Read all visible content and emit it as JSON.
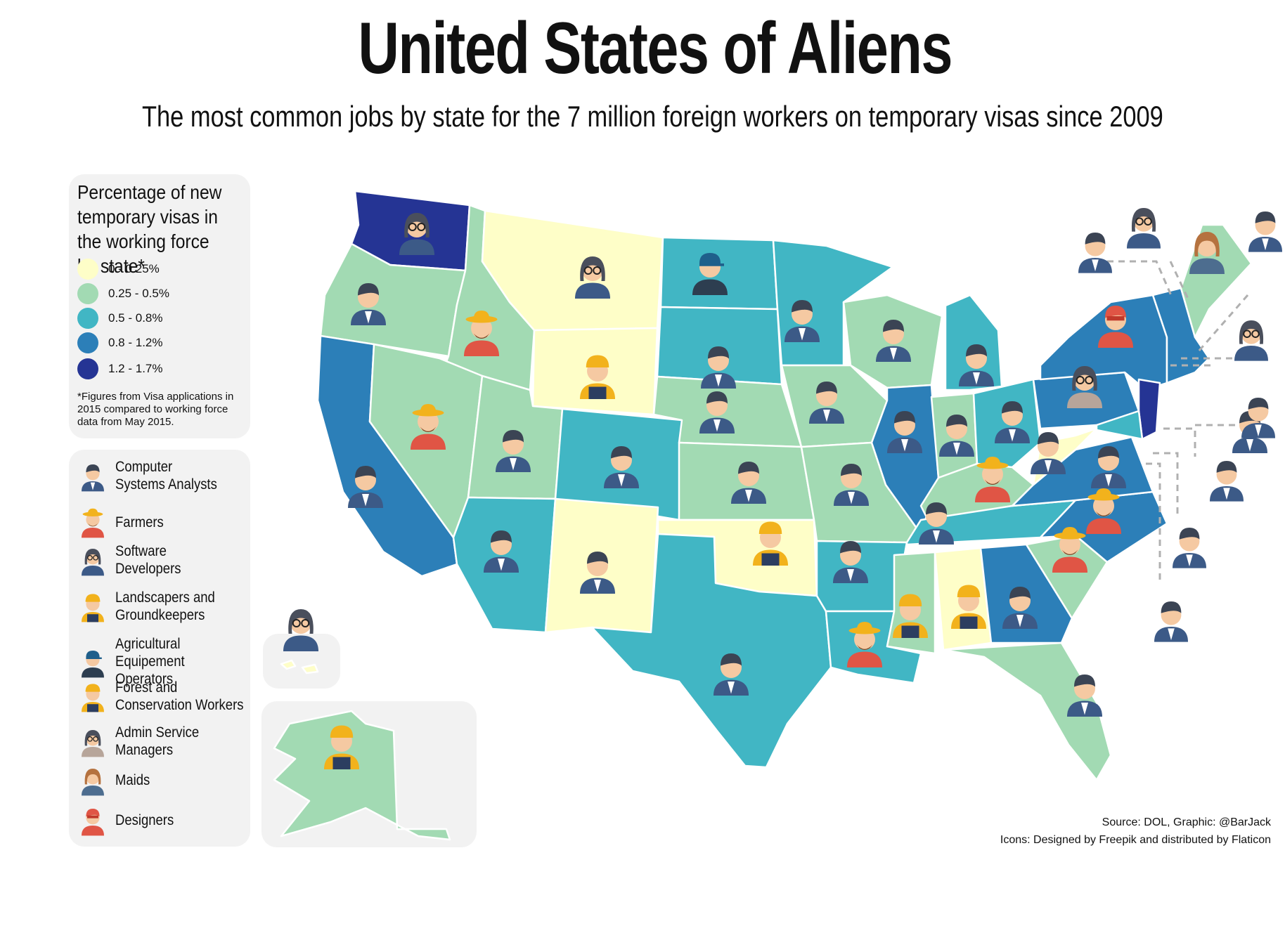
{
  "title": "United States of Aliens",
  "subtitle": "The most common jobs by state for the 7 million foreign workers on temporary visas since 2009",
  "legend": {
    "title": "Percentage of new temporary visas in the working force by state*",
    "scale": [
      {
        "label": "0 - 0.25%",
        "color": "#fefec8"
      },
      {
        "label": "0.25 - 0.5%",
        "color": "#a2dab3"
      },
      {
        "label": "0.5 - 0.8%",
        "color": "#41b6c4"
      },
      {
        "label": "0.8 - 1.2%",
        "color": "#2c7fb8"
      },
      {
        "label": "1.2 - 1.7%",
        "color": "#253494"
      }
    ],
    "footnote": "*Figures from Visa applications in 2015 compared to working force data from May 2015."
  },
  "jobs": [
    {
      "label": "Computer\nSystems Analysts",
      "icon": "man-suit-icon"
    },
    {
      "label": "Farmers",
      "icon": "farmer-icon"
    },
    {
      "label": "Software\nDevelopers",
      "icon": "woman-glasses-icon"
    },
    {
      "label": "Landscapers and\nGroundkeepers",
      "icon": "woman-hardhat-icon"
    },
    {
      "label": "Agricultural Equipement\nOperators",
      "icon": "cap-operator-icon"
    },
    {
      "label": "Forest and\nConservation Workers",
      "icon": "man-hardhat-icon"
    },
    {
      "label": "Admin Service Managers",
      "icon": "manager-glasses-icon"
    },
    {
      "label": "Maids",
      "icon": "maid-icon"
    },
    {
      "label": "Designers",
      "icon": "designer-icon"
    }
  ],
  "source": {
    "line1": "Source: DOL, Graphic: @BarJack",
    "line2": "Icons: Designed by Freepik and distributed by Flaticon"
  },
  "state_categories": {
    "WA": {
      "bin": 5,
      "job": "Software Developers"
    },
    "OR": {
      "bin": 2,
      "job": "Computer Systems Analysts"
    },
    "CA": {
      "bin": 4,
      "job": "Computer Systems Analysts"
    },
    "ID": {
      "bin": 2,
      "job": "Farmers"
    },
    "NV": {
      "bin": 2,
      "job": "Farmers"
    },
    "MT": {
      "bin": 1,
      "job": "Software Developers"
    },
    "WY": {
      "bin": 1,
      "job": "Landscapers and Groundkeepers"
    },
    "UT": {
      "bin": 2,
      "job": "Computer Systems Analysts"
    },
    "CO": {
      "bin": 3,
      "job": "Computer Systems Analysts"
    },
    "AZ": {
      "bin": 3,
      "job": "Computer Systems Analysts"
    },
    "NM": {
      "bin": 1,
      "job": "Computer Systems Analysts"
    },
    "ND": {
      "bin": 3,
      "job": "Agricultural Equipement Operators"
    },
    "SD": {
      "bin": 3,
      "job": "Computer Systems Analysts"
    },
    "NE": {
      "bin": 2,
      "job": "Computer Systems Analysts"
    },
    "KS": {
      "bin": 2,
      "job": "Computer Systems Analysts"
    },
    "OK": {
      "bin": 1,
      "job": "Landscapers and Groundkeepers"
    },
    "TX": {
      "bin": 3,
      "job": "Computer Systems Analysts"
    },
    "MN": {
      "bin": 3,
      "job": "Computer Systems Analysts"
    },
    "IA": {
      "bin": 2,
      "job": "Computer Systems Analysts"
    },
    "MO": {
      "bin": 2,
      "job": "Computer Systems Analysts"
    },
    "AR": {
      "bin": 3,
      "job": "Computer Systems Analysts"
    },
    "LA": {
      "bin": 3,
      "job": "Farmers"
    },
    "WI": {
      "bin": 2,
      "job": "Computer Systems Analysts"
    },
    "IL": {
      "bin": 4,
      "job": "Computer Systems Analysts"
    },
    "MI": {
      "bin": 3,
      "job": "Computer Systems Analysts"
    },
    "IN": {
      "bin": 2,
      "job": "Computer Systems Analysts"
    },
    "OH": {
      "bin": 3,
      "job": "Computer Systems Analysts"
    },
    "KY": {
      "bin": 2,
      "job": "Farmers"
    },
    "TN": {
      "bin": 3,
      "job": "Computer Systems Analysts"
    },
    "MS": {
      "bin": 2,
      "job": "Forest and Conservation Workers"
    },
    "AL": {
      "bin": 1,
      "job": "Forest and Conservation Workers"
    },
    "GA": {
      "bin": 4,
      "job": "Computer Systems Analysts"
    },
    "FL": {
      "bin": 2,
      "job": "Computer Systems Analysts"
    },
    "SC": {
      "bin": 2,
      "job": "Farmers"
    },
    "NC": {
      "bin": 4,
      "job": "Farmers"
    },
    "VA": {
      "bin": 4,
      "job": "Computer Systems Analysts"
    },
    "WV": {
      "bin": 1,
      "job": "Computer Systems Analysts"
    },
    "PA": {
      "bin": 4,
      "job": "Admin Service Managers"
    },
    "NY": {
      "bin": 4,
      "job": "Designers"
    },
    "NJ": {
      "bin": 5,
      "job": "Computer Systems Analysts"
    },
    "ME": {
      "bin": 2,
      "job": "Maids"
    },
    "AK": {
      "bin": 2,
      "job": "Forest and Conservation Workers"
    },
    "HI": {
      "bin": 1,
      "job": "Software Developers"
    }
  }
}
